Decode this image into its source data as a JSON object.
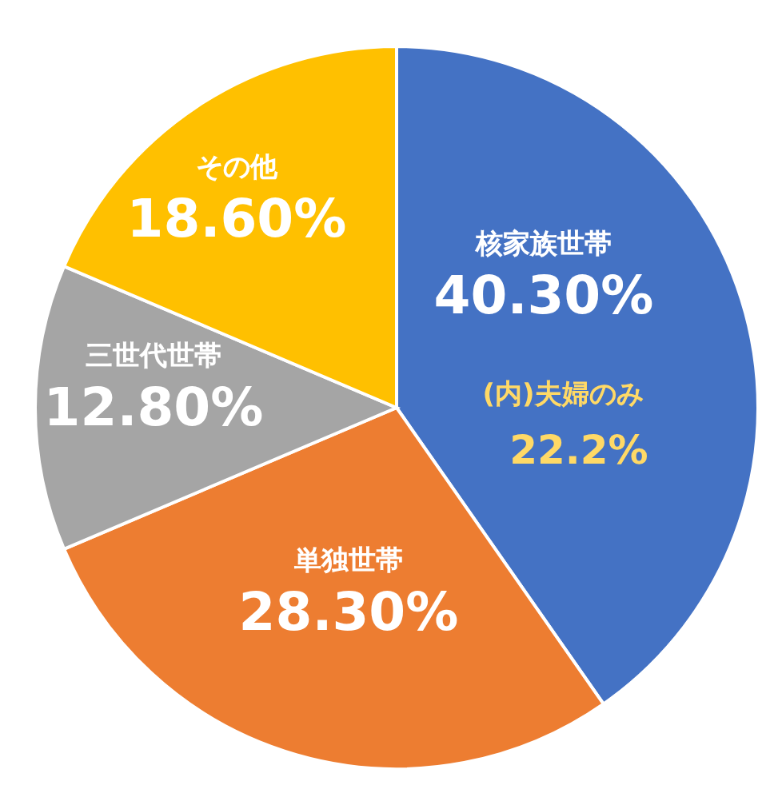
{
  "chart_data": {
    "type": "pie",
    "categories": [
      "核家族世帯",
      "単独世帯",
      "三世代世帯",
      "その他"
    ],
    "values": [
      40.3,
      28.3,
      12.8,
      18.6
    ],
    "colors": [
      "#4472c4",
      "#ed7d31",
      "#a5a5a5",
      "#ffc000"
    ],
    "value_labels": [
      "40.30%",
      "28.30%",
      "12.80%",
      "18.60%"
    ],
    "annotations": [
      "(内)夫婦のみ",
      "22.2%"
    ],
    "legend": false
  }
}
